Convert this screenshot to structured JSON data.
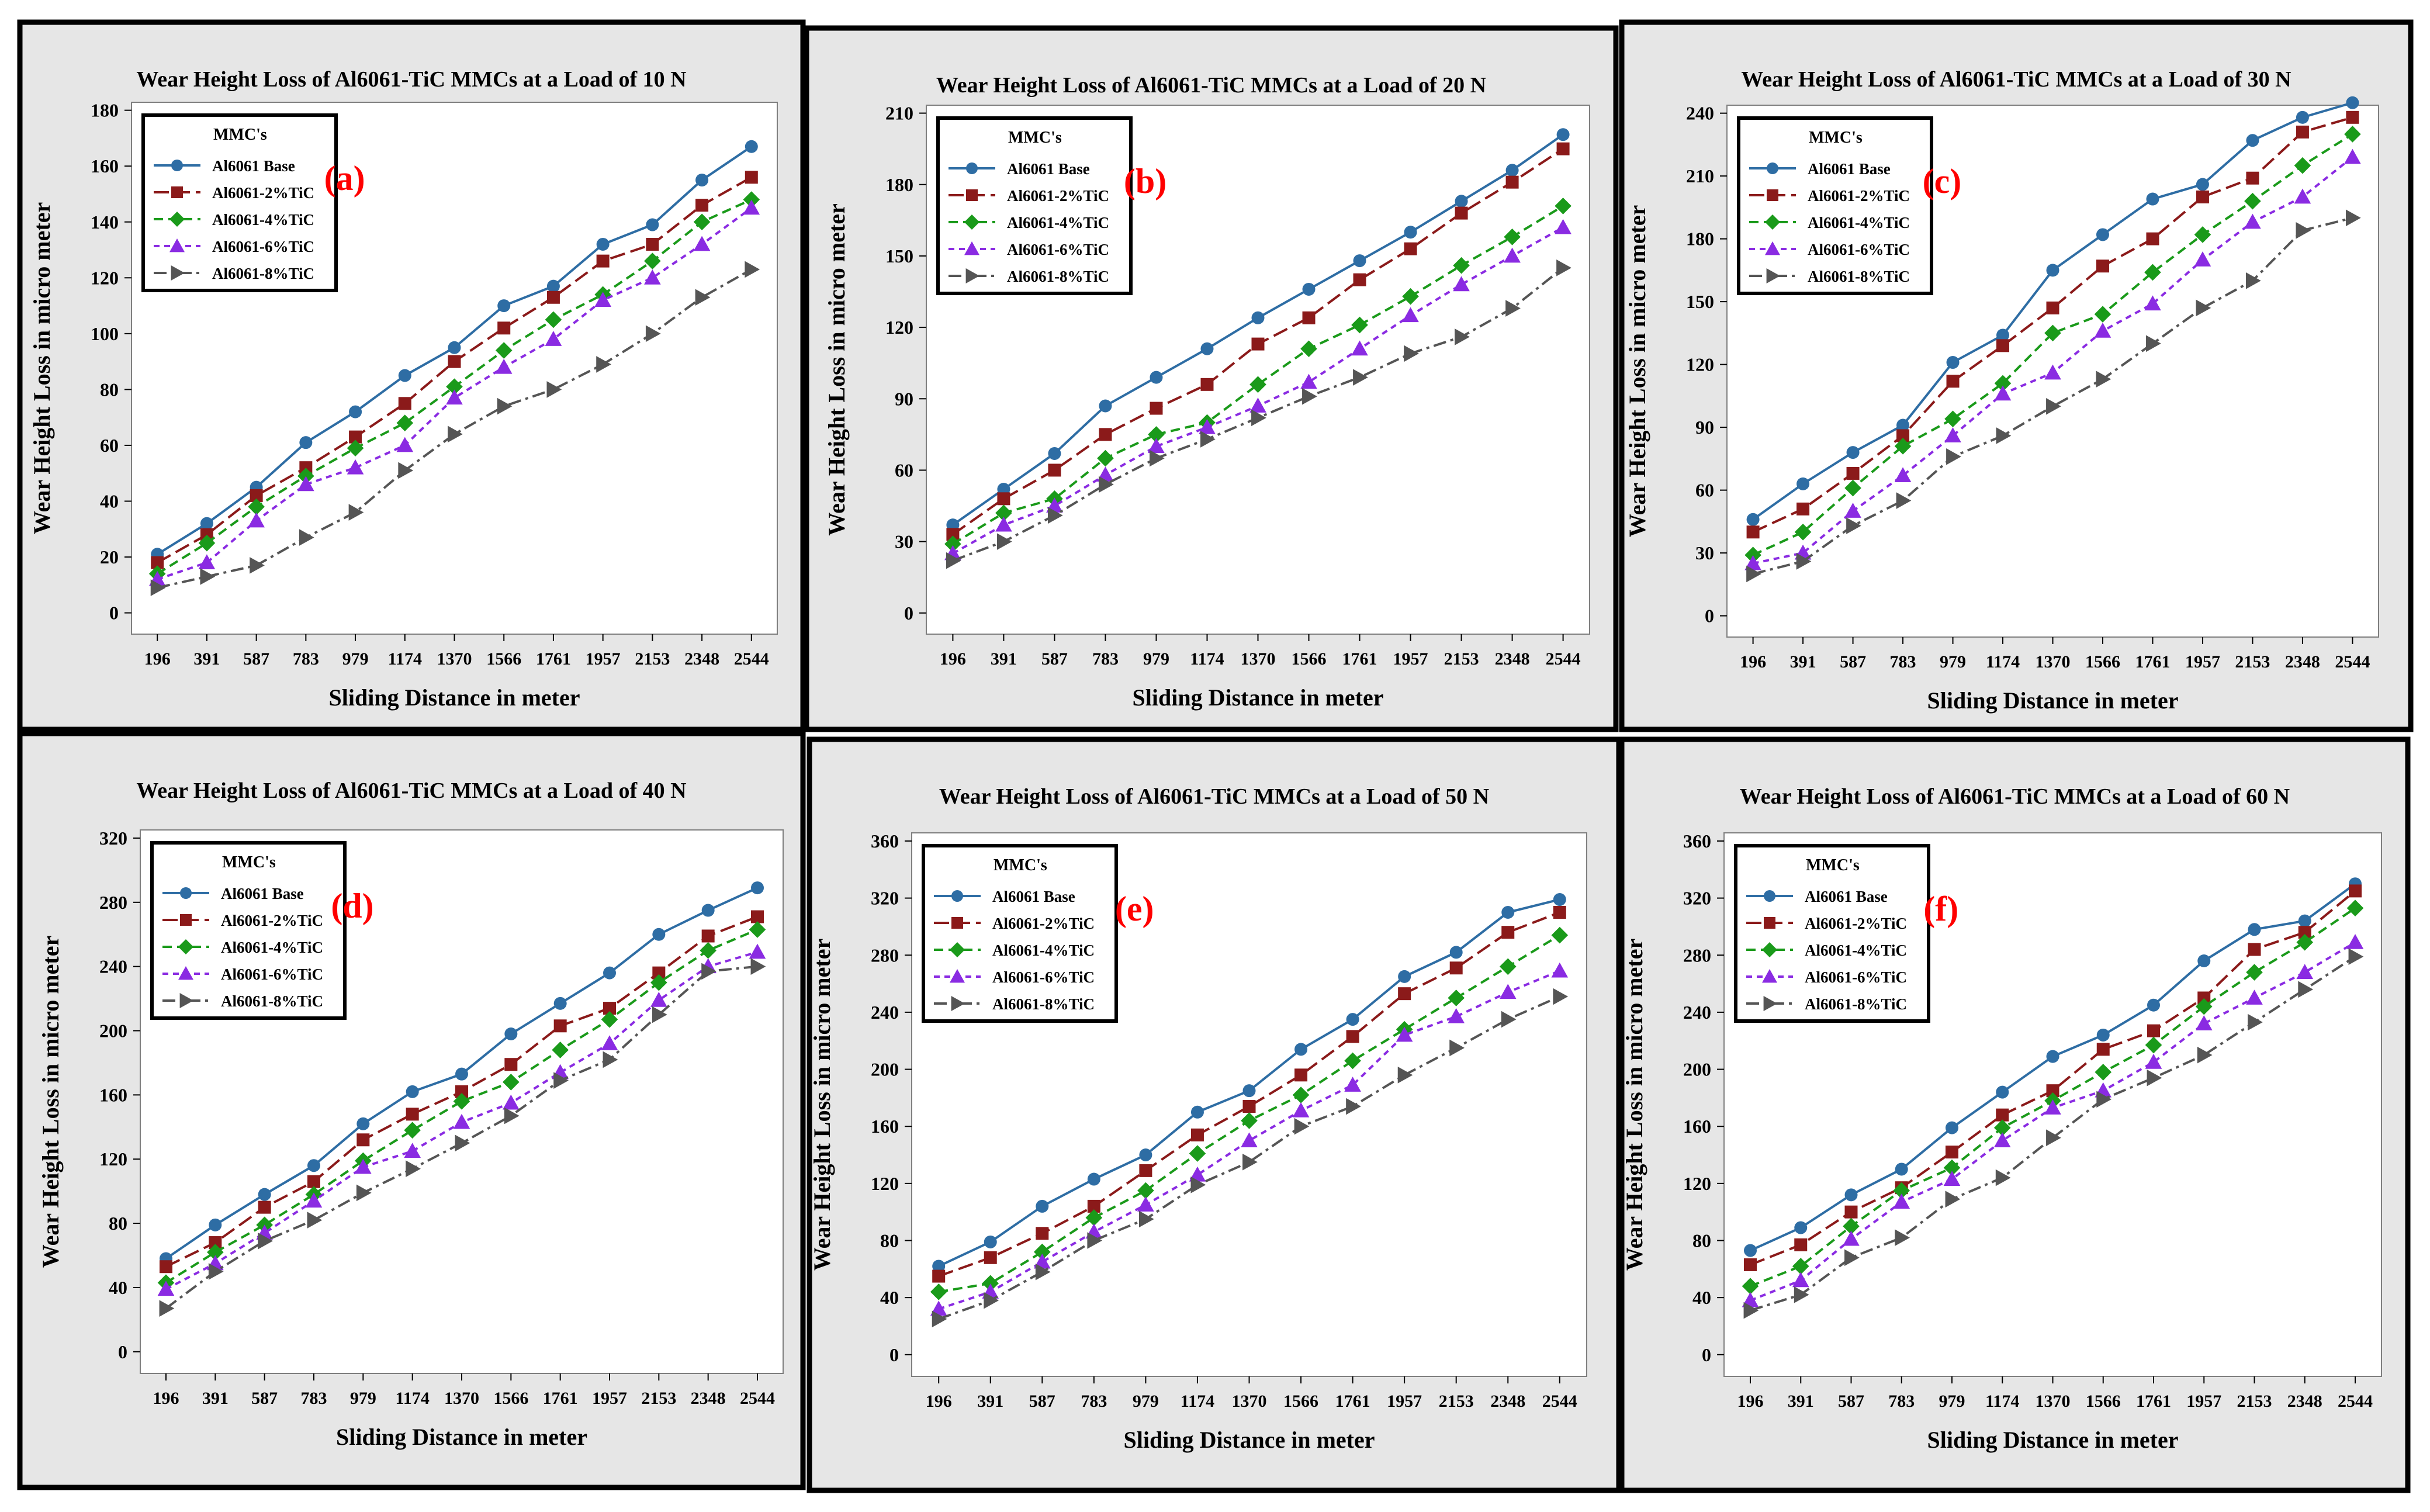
{
  "colors": {
    "panel_background": "#e6e6e6",
    "plot_background": "#ffffff",
    "border": "#000000",
    "grid_axis": "#000000",
    "panel_letter": "#ff0000"
  },
  "chart_data": [
    {
      "panel": "(a)",
      "type": "line",
      "title": "Wear Height Loss of Al6061-TiC MMCs at a Load of 10 N",
      "xlabel": "Sliding Distance in meter",
      "ylabel": "Wear Height Loss in micro meter",
      "categories": [
        "196",
        "391",
        "587",
        "783",
        "979",
        "1174",
        "1370",
        "1566",
        "1761",
        "1957",
        "2153",
        "2348",
        "2544"
      ],
      "ylim": [
        0,
        180
      ],
      "yticks": [
        0,
        20,
        40,
        60,
        80,
        100,
        120,
        140,
        160,
        180
      ],
      "legend_title": "MMC's",
      "legend_position": "top-left",
      "series": [
        {
          "name": "Al6061 Base",
          "color": "#2e6da4",
          "marker": "circle",
          "dash": "solid",
          "values": [
            21,
            32,
            45,
            61,
            72,
            85,
            95,
            110,
            117,
            132,
            139,
            155,
            167
          ]
        },
        {
          "name": "Al6061-2%TiC",
          "color": "#8b1a1a",
          "marker": "square",
          "dash": "long",
          "values": [
            18,
            28,
            42,
            52,
            63,
            75,
            90,
            102,
            113,
            126,
            132,
            146,
            156
          ]
        },
        {
          "name": "Al6061-4%TiC",
          "color": "#1a9a1a",
          "marker": "diamond",
          "dash": "medium",
          "values": [
            14,
            25,
            38,
            49,
            59,
            68,
            81,
            94,
            105,
            114,
            126,
            140,
            148
          ]
        },
        {
          "name": "Al6061-6%TiC",
          "color": "#8a2be2",
          "marker": "triangle",
          "dash": "short",
          "values": [
            12,
            18,
            33,
            46,
            52,
            60,
            77,
            88,
            98,
            112,
            120,
            132,
            145
          ]
        },
        {
          "name": "Al6061-8%TiC",
          "color": "#555555",
          "marker": "arrow",
          "dash": "dashdot",
          "values": [
            9,
            13,
            17,
            27,
            36,
            51,
            64,
            74,
            80,
            89,
            100,
            113,
            123
          ]
        }
      ]
    },
    {
      "panel": "(b)",
      "type": "line",
      "title": "Wear Height Loss of Al6061-TiC MMCs at a Load of 20 N",
      "xlabel": "Sliding Distance in meter",
      "ylabel": "Wear Height Loss in micro meter",
      "categories": [
        "196",
        "391",
        "587",
        "783",
        "979",
        "1174",
        "1370",
        "1566",
        "1761",
        "1957",
        "2153",
        "2348",
        "2544"
      ],
      "ylim": [
        0,
        210
      ],
      "yticks": [
        0,
        30,
        60,
        90,
        120,
        150,
        180,
        210
      ],
      "legend_title": "MMC's",
      "legend_position": "top-left",
      "series": [
        {
          "name": "Al6061 Base",
          "color": "#2e6da4",
          "marker": "circle",
          "dash": "solid",
          "values": [
            37,
            52,
            67,
            87,
            99,
            111,
            124,
            136,
            148,
            160,
            173,
            186,
            201
          ]
        },
        {
          "name": "Al6061-2%TiC",
          "color": "#8b1a1a",
          "marker": "square",
          "dash": "long",
          "values": [
            33,
            48,
            60,
            75,
            86,
            96,
            113,
            124,
            140,
            153,
            168,
            181,
            195
          ]
        },
        {
          "name": "Al6061-4%TiC",
          "color": "#1a9a1a",
          "marker": "diamond",
          "dash": "medium",
          "values": [
            29,
            42,
            48,
            65,
            75,
            80,
            96,
            111,
            121,
            133,
            146,
            158,
            171
          ]
        },
        {
          "name": "Al6061-6%TiC",
          "color": "#8a2be2",
          "marker": "triangle",
          "dash": "short",
          "values": [
            25,
            37,
            45,
            58,
            70,
            78,
            87,
            97,
            111,
            125,
            138,
            150,
            162
          ]
        },
        {
          "name": "Al6061-8%TiC",
          "color": "#555555",
          "marker": "arrow",
          "dash": "dashdot",
          "values": [
            22,
            30,
            41,
            54,
            65,
            73,
            82,
            91,
            99,
            109,
            116,
            128,
            145
          ]
        }
      ]
    },
    {
      "panel": "(c)",
      "type": "line",
      "title": "Wear Height Loss of Al6061-TiC MMCs at a Load of 30 N",
      "xlabel": "Sliding Distance in meter",
      "ylabel": "Wear Height Loss in micro meter",
      "categories": [
        "196",
        "391",
        "587",
        "783",
        "979",
        "1174",
        "1370",
        "1566",
        "1761",
        "1957",
        "2153",
        "2348",
        "2544"
      ],
      "ylim": [
        0,
        240
      ],
      "yticks": [
        0,
        30,
        60,
        90,
        120,
        150,
        180,
        210,
        240
      ],
      "legend_title": "MMC's",
      "legend_position": "top-left",
      "series": [
        {
          "name": "Al6061 Base",
          "color": "#2e6da4",
          "marker": "circle",
          "dash": "solid",
          "values": [
            46,
            63,
            78,
            91,
            121,
            134,
            165,
            182,
            199,
            206,
            227,
            238,
            245
          ]
        },
        {
          "name": "Al6061-2%TiC",
          "color": "#8b1a1a",
          "marker": "square",
          "dash": "long",
          "values": [
            40,
            51,
            68,
            86,
            112,
            129,
            147,
            167,
            180,
            200,
            209,
            231,
            238
          ]
        },
        {
          "name": "Al6061-4%TiC",
          "color": "#1a9a1a",
          "marker": "diamond",
          "dash": "medium",
          "values": [
            29,
            40,
            61,
            81,
            94,
            111,
            135,
            144,
            164,
            182,
            198,
            215,
            230
          ]
        },
        {
          "name": "Al6061-6%TiC",
          "color": "#8a2be2",
          "marker": "triangle",
          "dash": "short",
          "values": [
            25,
            30,
            50,
            67,
            86,
            106,
            116,
            136,
            149,
            170,
            188,
            200,
            219
          ]
        },
        {
          "name": "Al6061-8%TiC",
          "color": "#555555",
          "marker": "arrow",
          "dash": "dashdot",
          "values": [
            20,
            26,
            43,
            55,
            76,
            86,
            100,
            113,
            130,
            147,
            160,
            184,
            190
          ]
        }
      ]
    },
    {
      "panel": "(d)",
      "type": "line",
      "title": "Wear Height Loss of Al6061-TiC MMCs at a Load of 40 N",
      "xlabel": "Sliding Distance in meter",
      "ylabel": "Wear Height Loss in micro meter",
      "categories": [
        "196",
        "391",
        "587",
        "783",
        "979",
        "1174",
        "1370",
        "1566",
        "1761",
        "1957",
        "2153",
        "2348",
        "2544"
      ],
      "ylim": [
        0,
        320
      ],
      "yticks": [
        0,
        40,
        80,
        120,
        160,
        200,
        240,
        280,
        320
      ],
      "legend_title": "MMC's",
      "legend_position": "top-left",
      "series": [
        {
          "name": "Al6061 Base",
          "color": "#2e6da4",
          "marker": "circle",
          "dash": "solid",
          "values": [
            58,
            79,
            98,
            116,
            142,
            162,
            173,
            198,
            217,
            236,
            260,
            275,
            289
          ]
        },
        {
          "name": "Al6061-2%TiC",
          "color": "#8b1a1a",
          "marker": "square",
          "dash": "long",
          "values": [
            53,
            68,
            90,
            106,
            132,
            148,
            162,
            179,
            203,
            214,
            236,
            259,
            271
          ]
        },
        {
          "name": "Al6061-4%TiC",
          "color": "#1a9a1a",
          "marker": "diamond",
          "dash": "medium",
          "values": [
            43,
            62,
            79,
            98,
            119,
            138,
            156,
            168,
            188,
            207,
            230,
            250,
            263
          ]
        },
        {
          "name": "Al6061-6%TiC",
          "color": "#8a2be2",
          "marker": "triangle",
          "dash": "short",
          "values": [
            39,
            55,
            74,
            94,
            115,
            125,
            143,
            155,
            174,
            192,
            219,
            240,
            249
          ]
        },
        {
          "name": "Al6061-8%TiC",
          "color": "#555555",
          "marker": "arrow",
          "dash": "dashdot",
          "values": [
            27,
            50,
            69,
            82,
            99,
            114,
            130,
            147,
            169,
            182,
            210,
            237,
            240
          ]
        }
      ]
    },
    {
      "panel": "(e)",
      "type": "line",
      "title": "Wear Height Loss of Al6061-TiC MMCs at a Load of 50 N",
      "xlabel": "Sliding Distance in meter",
      "ylabel": "Wear Height Loss in micro meter",
      "categories": [
        "196",
        "391",
        "587",
        "783",
        "979",
        "1174",
        "1370",
        "1566",
        "1761",
        "1957",
        "2153",
        "2348",
        "2544"
      ],
      "ylim": [
        0,
        360
      ],
      "yticks": [
        0,
        40,
        80,
        120,
        160,
        200,
        240,
        280,
        320,
        360
      ],
      "legend_title": "MMC's",
      "legend_position": "top-left",
      "series": [
        {
          "name": "Al6061 Base",
          "color": "#2e6da4",
          "marker": "circle",
          "dash": "solid",
          "values": [
            62,
            79,
            104,
            123,
            140,
            170,
            185,
            214,
            235,
            265,
            282,
            310,
            319
          ]
        },
        {
          "name": "Al6061-2%TiC",
          "color": "#8b1a1a",
          "marker": "square",
          "dash": "long",
          "values": [
            55,
            68,
            85,
            104,
            129,
            154,
            174,
            196,
            223,
            253,
            271,
            296,
            310
          ]
        },
        {
          "name": "Al6061-4%TiC",
          "color": "#1a9a1a",
          "marker": "diamond",
          "dash": "medium",
          "values": [
            44,
            50,
            72,
            96,
            115,
            141,
            164,
            182,
            206,
            228,
            250,
            272,
            294
          ]
        },
        {
          "name": "Al6061-6%TiC",
          "color": "#8a2be2",
          "marker": "triangle",
          "dash": "short",
          "values": [
            32,
            44,
            65,
            86,
            105,
            126,
            150,
            171,
            189,
            224,
            237,
            254,
            269
          ]
        },
        {
          "name": "Al6061-8%TiC",
          "color": "#555555",
          "marker": "arrow",
          "dash": "dashdot",
          "values": [
            25,
            38,
            58,
            80,
            95,
            119,
            135,
            160,
            174,
            196,
            215,
            235,
            251
          ]
        }
      ]
    },
    {
      "panel": "(f)",
      "type": "line",
      "title": "Wear Height Loss of Al6061-TiC MMCs at a Load of 60 N",
      "xlabel": "Sliding Distance in meter",
      "ylabel": "Wear Height Loss in micro meter",
      "categories": [
        "196",
        "391",
        "587",
        "783",
        "979",
        "1174",
        "1370",
        "1566",
        "1761",
        "1957",
        "2153",
        "2348",
        "2544"
      ],
      "ylim": [
        0,
        360
      ],
      "yticks": [
        0,
        40,
        80,
        120,
        160,
        200,
        240,
        280,
        320,
        360
      ],
      "legend_title": "MMC's",
      "legend_position": "top-left",
      "series": [
        {
          "name": "Al6061 Base",
          "color": "#2e6da4",
          "marker": "circle",
          "dash": "solid",
          "values": [
            73,
            89,
            112,
            130,
            159,
            184,
            209,
            224,
            245,
            276,
            298,
            304,
            330
          ]
        },
        {
          "name": "Al6061-2%TiC",
          "color": "#8b1a1a",
          "marker": "square",
          "dash": "long",
          "values": [
            63,
            77,
            100,
            117,
            142,
            168,
            185,
            214,
            227,
            250,
            284,
            296,
            325
          ]
        },
        {
          "name": "Al6061-4%TiC",
          "color": "#1a9a1a",
          "marker": "diamond",
          "dash": "medium",
          "values": [
            48,
            62,
            90,
            115,
            131,
            159,
            178,
            198,
            217,
            244,
            268,
            289,
            313
          ]
        },
        {
          "name": "Al6061-6%TiC",
          "color": "#8a2be2",
          "marker": "triangle",
          "dash": "short",
          "values": [
            38,
            52,
            81,
            107,
            123,
            150,
            173,
            185,
            205,
            232,
            250,
            268,
            289
          ]
        },
        {
          "name": "Al6061-8%TiC",
          "color": "#555555",
          "marker": "arrow",
          "dash": "dashdot",
          "values": [
            31,
            42,
            68,
            82,
            109,
            124,
            152,
            179,
            194,
            210,
            233,
            256,
            279
          ]
        }
      ]
    }
  ]
}
